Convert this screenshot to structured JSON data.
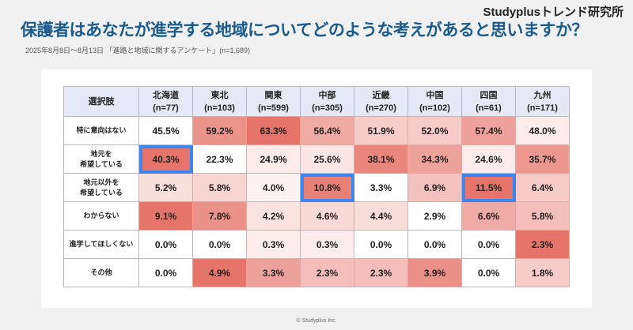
{
  "brand": "Studyplusトレンド研究所",
  "title": "保護者はあなたが進学する地域についてどのような考えがあると思いますか？",
  "subtitle": "2025年8月8日～8月13日 「進路と地域に関するアンケート」(n=1,689)",
  "footer": "© Studyplus Inc.",
  "colors": {
    "high": "#e5746a",
    "low": "#ffffff",
    "highlight": "#3d86f0",
    "title": "#1a5b8f"
  },
  "table": {
    "corner": "選択肢",
    "columns": [
      {
        "name": "北海道",
        "n": "(n=77)"
      },
      {
        "name": "東北",
        "n": "(n=103)"
      },
      {
        "name": "関東",
        "n": "(n=599)"
      },
      {
        "name": "中部",
        "n": "(n=305)"
      },
      {
        "name": "近畿",
        "n": "(n=270)"
      },
      {
        "name": "中国",
        "n": "(n=102)"
      },
      {
        "name": "四国",
        "n": "(n=61)"
      },
      {
        "name": "九州",
        "n": "(n=171)"
      }
    ],
    "rows": [
      {
        "label": "特に意向はない",
        "values": [
          45.5,
          59.2,
          63.3,
          56.4,
          51.9,
          52.0,
          57.4,
          48.0
        ],
        "highlight": []
      },
      {
        "label": "地元を\n希望している",
        "values": [
          40.3,
          22.3,
          24.9,
          25.6,
          38.1,
          34.3,
          24.6,
          35.7
        ],
        "highlight": [
          0
        ]
      },
      {
        "label": "地元以外を\n希望している",
        "values": [
          5.2,
          5.8,
          4.0,
          10.8,
          3.3,
          6.9,
          11.5,
          6.4
        ],
        "highlight": [
          3,
          6
        ]
      },
      {
        "label": "わからない",
        "values": [
          9.1,
          7.8,
          4.2,
          4.6,
          4.4,
          2.9,
          6.6,
          5.8
        ],
        "highlight": []
      },
      {
        "label": "進学してほしくない",
        "values": [
          0.0,
          0.0,
          0.3,
          0.3,
          0.0,
          0.0,
          0.0,
          2.3
        ],
        "highlight": []
      },
      {
        "label": "その他",
        "values": [
          0.0,
          4.9,
          3.3,
          2.3,
          2.3,
          3.9,
          0.0,
          1.8
        ],
        "highlight": []
      }
    ]
  }
}
